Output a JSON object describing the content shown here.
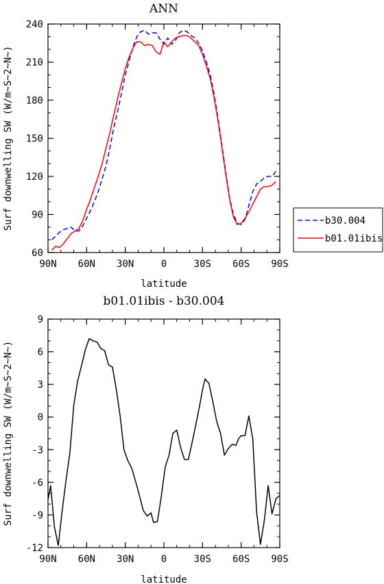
{
  "chart_data": [
    {
      "type": "line",
      "title": "ANN",
      "xlabel": "latitude",
      "ylabel": "Surf downwelling SW (W/m~S~2~N~)",
      "xlim": [
        -90,
        90
      ],
      "ylim": [
        60,
        240
      ],
      "xticks": [
        -90,
        -60,
        -30,
        0,
        30,
        60,
        90
      ],
      "xtick_labels": [
        "90N",
        "60N",
        "30N",
        "0",
        "30S",
        "60S",
        "90S"
      ],
      "yticks": [
        60,
        90,
        120,
        150,
        180,
        210,
        240
      ],
      "ytick_labels": [
        "60",
        "90",
        "120",
        "150",
        "180",
        "210",
        "240"
      ],
      "grid": false,
      "legend_position": "right-bottom",
      "series": [
        {
          "name": "b30.004",
          "color": "#0000ff",
          "dash": "dashed",
          "x": [
            -87,
            -84,
            -81,
            -78,
            -75,
            -72,
            -69,
            -66,
            -63,
            -60,
            -57,
            -54,
            -51,
            -48,
            -45,
            -42,
            -39,
            -36,
            -33,
            -30,
            -27,
            -24,
            -21,
            -18,
            -15,
            -12,
            -9,
            -6,
            -3,
            0,
            3,
            6,
            9,
            12,
            15,
            18,
            21,
            24,
            27,
            30,
            33,
            36,
            39,
            42,
            45,
            48,
            51,
            54,
            57,
            60,
            63,
            66,
            69,
            72,
            75,
            78,
            81,
            84,
            87
          ],
          "y": [
            70,
            73,
            76,
            78,
            79,
            80,
            77,
            77,
            81,
            87,
            93,
            100,
            108,
            118,
            128,
            142,
            158,
            171,
            185,
            200,
            211,
            222,
            230,
            234,
            235,
            232,
            233,
            233,
            228,
            224,
            229,
            224,
            227,
            233,
            235,
            234,
            231,
            229,
            225,
            219,
            210,
            200,
            185,
            166,
            145,
            124,
            103,
            90,
            83,
            82,
            86,
            97,
            108,
            114,
            116,
            119,
            120,
            120,
            124
          ]
        },
        {
          "name": "b01.01ibis",
          "color": "#ff0000",
          "dash": "solid",
          "x": [
            -87,
            -84,
            -81,
            -78,
            -75,
            -72,
            -69,
            -66,
            -63,
            -60,
            -57,
            -54,
            -51,
            -48,
            -45,
            -42,
            -39,
            -36,
            -33,
            -30,
            -27,
            -24,
            -21,
            -18,
            -15,
            -12,
            -9,
            -6,
            -3,
            0,
            3,
            6,
            9,
            12,
            15,
            18,
            21,
            24,
            27,
            30,
            33,
            36,
            39,
            42,
            45,
            48,
            51,
            54,
            57,
            60,
            63,
            66,
            69,
            72,
            75,
            78,
            81,
            84,
            87
          ],
          "y": [
            62,
            65,
            64,
            67,
            71,
            75,
            77,
            79,
            85,
            94,
            102,
            111,
            120,
            130,
            142,
            154,
            168,
            181,
            193,
            205,
            214,
            221,
            226,
            226,
            223,
            224,
            223,
            218,
            216,
            226,
            222,
            226,
            229,
            230,
            231,
            231,
            229,
            226,
            223,
            216,
            207,
            197,
            182,
            164,
            143,
            122,
            102,
            88,
            82,
            83,
            87,
            92,
            98,
            104,
            110,
            112,
            112,
            113,
            116
          ]
        }
      ]
    },
    {
      "type": "line",
      "title": "b01.01ibis - b30.004",
      "xlabel": "latitude",
      "ylabel": "Surf downwelling SW (W/m~S~2~N~)",
      "xlim": [
        -90,
        90
      ],
      "ylim": [
        -12,
        9
      ],
      "xticks": [
        -90,
        -60,
        -30,
        0,
        30,
        60,
        90
      ],
      "xtick_labels": [
        "90N",
        "60N",
        "30N",
        "0",
        "30S",
        "60S",
        "90S"
      ],
      "yticks": [
        -12,
        -9,
        -6,
        -3,
        0,
        3,
        6,
        9
      ],
      "ytick_labels": [
        "-12",
        "-9",
        "-6",
        "-3",
        "0",
        "3",
        "6",
        "9"
      ],
      "grid": false,
      "series": [
        {
          "color": "#000000",
          "dash": "solid",
          "x": [
            -90,
            -88,
            -85,
            -82,
            -79,
            -76,
            -73,
            -70,
            -67,
            -64,
            -61,
            -58,
            -55,
            -52,
            -49,
            -46,
            -43,
            -40,
            -37,
            -34,
            -31,
            -28,
            -25,
            -22,
            -19,
            -16,
            -13,
            -10,
            -8,
            -5,
            -2,
            1,
            4,
            7,
            10,
            13,
            16,
            19,
            22,
            25,
            28,
            30,
            32,
            35,
            38,
            41,
            44,
            47,
            50,
            53,
            56,
            58,
            60,
            63,
            66,
            69,
            72,
            75,
            78,
            81,
            84,
            87,
            90
          ],
          "y": [
            -7.6,
            -6.3,
            -10.1,
            -11.8,
            -8.6,
            -5.8,
            -3.3,
            1.1,
            3.3,
            4.7,
            6.2,
            7.2,
            7.0,
            6.9,
            6.3,
            6.1,
            4.8,
            4.6,
            2.6,
            0.1,
            -3.0,
            -4.0,
            -4.7,
            -5.9,
            -7.2,
            -8.6,
            -9.1,
            -8.8,
            -9.7,
            -9.6,
            -7.3,
            -4.6,
            -3.5,
            -1.5,
            -1.2,
            -2.8,
            -3.9,
            -3.9,
            -2.3,
            -0.6,
            1.2,
            2.5,
            3.5,
            3.1,
            1.4,
            -0.4,
            -1.5,
            -3.5,
            -2.9,
            -2.5,
            -2.6,
            -2.0,
            -1.7,
            -1.7,
            0.1,
            -2.0,
            -8.7,
            -11.7,
            -9.5,
            -6.3,
            -8.9,
            -7.5,
            -7.2
          ]
        }
      ]
    }
  ]
}
